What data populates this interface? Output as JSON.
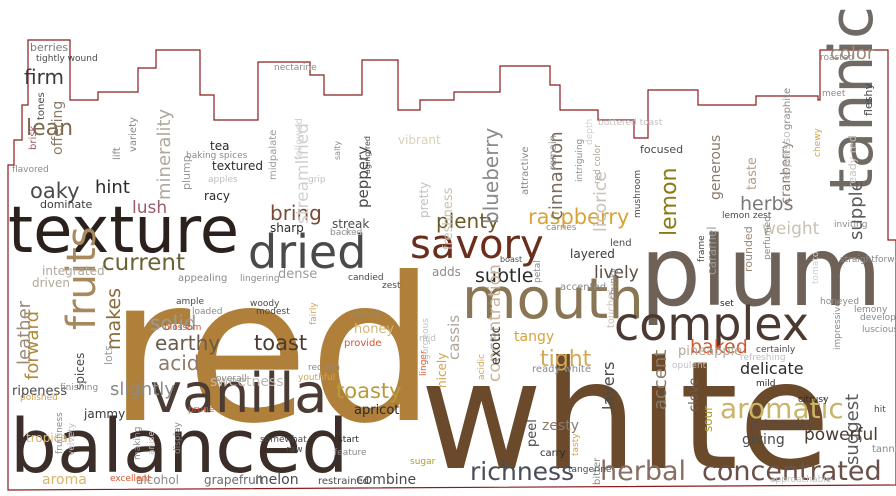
{
  "wordcloud": {
    "outline_color": "#8b1c1c",
    "background": "#ffffff",
    "words": [
      {
        "text": "white",
        "color": "#6b4a2b"
      },
      {
        "text": "red",
        "color": "#b0803a"
      },
      {
        "text": "plum",
        "color": "#6e6258"
      },
      {
        "text": "balanced",
        "color": "#3b2d28"
      },
      {
        "text": "texture",
        "color": "#2b211c"
      },
      {
        "text": "vanilla",
        "color": "#4a3c34"
      },
      {
        "text": "mouth",
        "color": "#8a7654"
      },
      {
        "text": "complex",
        "color": "#4a3a32"
      },
      {
        "text": "dried",
        "color": "#4a4a4a"
      },
      {
        "text": "savory",
        "color": "#6b2e1c"
      },
      {
        "text": "tannic",
        "color": "#6f6a63"
      },
      {
        "text": "fruits",
        "color": "#a8895e"
      },
      {
        "text": "herbal",
        "color": "#8a6e62"
      },
      {
        "text": "concentrated",
        "color": "#6a5048"
      },
      {
        "text": "richness",
        "color": "#4a4e58"
      },
      {
        "text": "current",
        "color": "#6a6232"
      },
      {
        "text": "raspberry",
        "color": "#d9a338"
      },
      {
        "text": "plenty",
        "color": "#6a5a2a"
      },
      {
        "text": "subtle",
        "color": "#2a2a2a"
      },
      {
        "text": "tight",
        "color": "#d4a955"
      },
      {
        "text": "toasty",
        "color": "#b99a3a"
      },
      {
        "text": "baked",
        "color": "#d9552e"
      },
      {
        "text": "delicate",
        "color": "#2a2a2a"
      },
      {
        "text": "aromatic",
        "color": "#c9b46a"
      },
      {
        "text": "acid",
        "color": "#8e7a68"
      },
      {
        "text": "lively",
        "color": "#5a4c40"
      },
      {
        "text": "herbs",
        "color": "#7a7a7a"
      },
      {
        "text": "weight",
        "color": "#c9c0b2"
      },
      {
        "text": "lemon",
        "color": "#8a7a18"
      },
      {
        "text": "earthy",
        "color": "#6a5a4a"
      },
      {
        "text": "toast",
        "color": "#4a3a30"
      },
      {
        "text": "solid",
        "color": "#9a9a9a"
      },
      {
        "text": "bring",
        "color": "#7a4a34"
      },
      {
        "text": "oaky",
        "color": "#4a4a4a"
      },
      {
        "text": "hint",
        "color": "#2a2a2a"
      },
      {
        "text": "lean",
        "color": "#7a6a4a"
      },
      {
        "text": "firm",
        "color": "#3a3a3a"
      },
      {
        "text": "lush",
        "color": "#9a5a6a"
      },
      {
        "text": "makes",
        "color": "#8a6a3a"
      },
      {
        "text": "forward",
        "color": "#b08a3a"
      },
      {
        "text": "leather",
        "color": "#9a8a7a"
      },
      {
        "text": "slightly",
        "color": "#8a8a8a"
      },
      {
        "text": "tangy",
        "color": "#d9a338"
      },
      {
        "text": "concentration",
        "color": "#c9b49a"
      },
      {
        "text": "cassis",
        "color": "#b0a49a"
      },
      {
        "text": "accent",
        "color": "#8a7a6a"
      },
      {
        "text": "layers",
        "color": "#4a4a4a"
      },
      {
        "text": "suggest",
        "color": "#5a5a5a"
      },
      {
        "text": "powerful",
        "color": "#4a3a30"
      },
      {
        "text": "intensity",
        "color": "#5a4a40"
      },
      {
        "text": "giving",
        "color": "#4a4a4a"
      },
      {
        "text": "supple",
        "color": "#5a5a5a"
      },
      {
        "text": "color",
        "color": "#9a8a7a"
      },
      {
        "text": "generous",
        "color": "#8a7a6a"
      },
      {
        "text": "taste",
        "color": "#b0a08a"
      },
      {
        "text": "cranberry",
        "color": "#8a7a6a"
      },
      {
        "text": "blueberry",
        "color": "#8a8a8a"
      },
      {
        "text": "cinnamon",
        "color": "#7a6a5a"
      },
      {
        "text": "licorice",
        "color": "#c9c0b8"
      },
      {
        "text": "streamlined",
        "color": "#d0d0d0"
      },
      {
        "text": "peppery",
        "color": "#4a4a4a"
      },
      {
        "text": "minerality",
        "color": "#b0a89a"
      },
      {
        "text": "offering",
        "color": "#8a7a6a"
      },
      {
        "text": "freshness",
        "color": "#c9bfb2"
      },
      {
        "text": "pretty",
        "color": "#c0c0c0"
      },
      {
        "text": "vibrant",
        "color": "#d9d0b8"
      },
      {
        "text": "dense",
        "color": "#9a9a9a"
      },
      {
        "text": "honey",
        "color": "#d4b47a"
      },
      {
        "text": "exotic",
        "color": "#3a3a3a"
      },
      {
        "text": "peel",
        "color": "#4a4a4a"
      },
      {
        "text": "zesty",
        "color": "#8a7a6a"
      },
      {
        "text": "clove",
        "color": "#6a5a4a"
      },
      {
        "text": "sour",
        "color": "#b09a30"
      },
      {
        "text": "rounded",
        "color": "#9a8a7a"
      },
      {
        "text": "caramel",
        "color": "#9a9a9a"
      },
      {
        "text": "pineapple",
        "color": "#b0a898"
      },
      {
        "text": "sweetness",
        "color": "#c0b8b0"
      },
      {
        "text": "apricot",
        "color": "#2a2a2a"
      },
      {
        "text": "combine",
        "color": "#4a4a4a"
      },
      {
        "text": "melon",
        "color": "#4a4a4a"
      },
      {
        "text": "grapefruit",
        "color": "#6a6a6a"
      },
      {
        "text": "alcohol",
        "color": "#8a8a8a"
      },
      {
        "text": "aroma",
        "color": "#d9b46a"
      },
      {
        "text": "tropical",
        "color": "#d9b46a"
      },
      {
        "text": "ripeness",
        "color": "#4a4a4a"
      },
      {
        "text": "jammy",
        "color": "#3a3a3a"
      },
      {
        "text": "spices",
        "color": "#4a4a4a"
      },
      {
        "text": "lots",
        "color": "#9a9a9a"
      },
      {
        "text": "driven",
        "color": "#b0a89a"
      },
      {
        "text": "integrated",
        "color": "#b0a89a"
      },
      {
        "text": "dominate",
        "color": "#3a3a3a"
      },
      {
        "text": "tea",
        "color": "#2a2a2a"
      },
      {
        "text": "textured",
        "color": "#2a2a2a"
      },
      {
        "text": "racy",
        "color": "#2a2a2a"
      },
      {
        "text": "sharp",
        "color": "#2a2a2a"
      },
      {
        "text": "streak",
        "color": "#4a4a4a"
      },
      {
        "text": "adds",
        "color": "#8a8a8a"
      },
      {
        "text": "nicely",
        "color": "#d4a34a"
      },
      {
        "text": "layered",
        "color": "#3a3a3a"
      },
      {
        "text": "focused",
        "color": "#4a4a4a"
      },
      {
        "text": "berries",
        "color": "#7a7a7a"
      },
      {
        "text": "tones",
        "color": "#4a4a4a"
      },
      {
        "text": "brisk",
        "color": "#9a5a6a"
      },
      {
        "text": "variety",
        "color": "#8a8a8a"
      },
      {
        "text": "lift",
        "color": "#8a8a8a"
      },
      {
        "text": "plump",
        "color": "#9a9a9a"
      },
      {
        "text": "midpalate",
        "color": "#9a9a9a"
      },
      {
        "text": "followed",
        "color": "#d0d0d0"
      },
      {
        "text": "nectarine",
        "color": "#8a8a8a"
      },
      {
        "text": "attractive",
        "color": "#8a8a8a"
      },
      {
        "text": "remain",
        "color": "#8a8a8a"
      },
      {
        "text": "buttered toast",
        "color": "#c0c0c0"
      },
      {
        "text": "espresso",
        "color": "#c0c0c0"
      },
      {
        "text": "fleshy",
        "color": "#4a4a4a"
      },
      {
        "text": "roasted",
        "color": "#8a8a8a"
      },
      {
        "text": "ready red",
        "color": "#c9c0b8"
      },
      {
        "text": "accented",
        "color": "#8a8a8a"
      },
      {
        "text": "touches",
        "color": "#c9c0b8"
      },
      {
        "text": "chunky",
        "color": "#8a8a8a"
      },
      {
        "text": "appealing",
        "color": "#8a8a8a"
      },
      {
        "text": "lingering",
        "color": "#8a8a8a"
      },
      {
        "text": "candied",
        "color": "#4a4a4a"
      },
      {
        "text": "robust",
        "color": "#8a8a8a"
      },
      {
        "text": "provide",
        "color": "#d9552e"
      },
      {
        "text": "linger",
        "color": "#d9552e"
      },
      {
        "text": "acidic",
        "color": "#d4a34a"
      },
      {
        "text": "ready white",
        "color": "#8a8a8a"
      },
      {
        "text": "opulent",
        "color": "#c0c0c0"
      },
      {
        "text": "bitter",
        "color": "#8a8a8a"
      },
      {
        "text": "carry",
        "color": "#2a2a2a"
      },
      {
        "text": "tangerine",
        "color": "#4a4a4a"
      },
      {
        "text": "sugar",
        "color": "#b09a30"
      },
      {
        "text": "raw",
        "color": "#4a4a4a"
      },
      {
        "text": "somewhat",
        "color": "#4a4a4a"
      },
      {
        "text": "start",
        "color": "#2a2a2a"
      },
      {
        "text": "feature",
        "color": "#8a8a8a"
      },
      {
        "text": "restrained",
        "color": "#4a4a4a"
      },
      {
        "text": "excellent",
        "color": "#d9552e"
      },
      {
        "text": "prune",
        "color": "#d9552e"
      },
      {
        "text": "making",
        "color": "#8a8a8a"
      },
      {
        "text": "anise",
        "color": "#c0c0c0"
      },
      {
        "text": "fruitiness",
        "color": "#8a8a8a"
      },
      {
        "text": "velvety",
        "color": "#c0c0c0"
      },
      {
        "text": "finishing",
        "color": "#8a8a8a"
      },
      {
        "text": "polished",
        "color": "#d4a34a"
      },
      {
        "text": "display",
        "color": "#8a8a8a"
      },
      {
        "text": "overall",
        "color": "#8a8a8a"
      },
      {
        "text": "red fim",
        "color": "#8a8a8a"
      },
      {
        "text": "youthful",
        "color": "#d4a34a"
      },
      {
        "text": "fairly",
        "color": "#d4a34a"
      },
      {
        "text": "woody",
        "color": "#4a4a4a"
      },
      {
        "text": "modest",
        "color": "#4a4a4a"
      },
      {
        "text": "blossom",
        "color": "#d9552e"
      },
      {
        "text": "ample",
        "color": "#4a4a4a"
      },
      {
        "text": "loaded",
        "color": "#8a8a8a"
      },
      {
        "text": "backed",
        "color": "#8a8a8a"
      },
      {
        "text": "carries",
        "color": "#8a8a8a"
      },
      {
        "text": "lend",
        "color": "#4a4a4a"
      },
      {
        "text": "petal",
        "color": "#8a8a8a"
      },
      {
        "text": "boast",
        "color": "#4a4a4a"
      },
      {
        "text": "depth",
        "color": "#d0d0d0"
      },
      {
        "text": "intriguing",
        "color": "#8a8a8a"
      },
      {
        "text": "red color",
        "color": "#b0a898"
      },
      {
        "text": "mushroom",
        "color": "#4a4a4a"
      },
      {
        "text": "lemon zest",
        "color": "#4a4a4a"
      },
      {
        "text": "perfumed",
        "color": "#8a8a8a"
      },
      {
        "text": "inviting",
        "color": "#8a8a8a"
      },
      {
        "text": "tomato",
        "color": "#d0d0d0"
      },
      {
        "text": "honeyed",
        "color": "#8a8a8a"
      },
      {
        "text": "lemony",
        "color": "#8a8a8a"
      },
      {
        "text": "develop red",
        "color": "#8a8a8a"
      },
      {
        "text": "luscious",
        "color": "#8a8a8a"
      },
      {
        "text": "set",
        "color": "#2a2a2a"
      },
      {
        "text": "mild",
        "color": "#2a2a2a"
      },
      {
        "text": "citrusy",
        "color": "#2a2a2a"
      },
      {
        "text": "approachable",
        "color": "#c0c0c0"
      },
      {
        "text": "tasty",
        "color": "#d4a34a"
      },
      {
        "text": "frame",
        "color": "#4a4a4a"
      },
      {
        "text": "chewy",
        "color": "#d4a34a"
      },
      {
        "text": "meet",
        "color": "#8a8a8a"
      },
      {
        "text": "tightly wound",
        "color": "#4a4a4a"
      },
      {
        "text": "flavored",
        "color": "#8a8a8a"
      },
      {
        "text": "baking spices",
        "color": "#8a8a8a"
      },
      {
        "text": "apples",
        "color": "#c0c0c0"
      },
      {
        "text": "salty",
        "color": "#8a8a8a"
      },
      {
        "text": "aging red",
        "color": "#4a4a4a"
      },
      {
        "text": "tannin",
        "color": "#8a8a8a"
      },
      {
        "text": "graphite",
        "color": "#8a8a8a"
      },
      {
        "text": "straightforward",
        "color": "#8a8a8a"
      },
      {
        "text": "impressive",
        "color": "#8a8a8a"
      },
      {
        "text": "hit",
        "color": "#4a4a4a"
      },
      {
        "text": "certainly",
        "color": "#4a4a4a"
      },
      {
        "text": "gorgeous",
        "color": "#c0c0c0"
      },
      {
        "text": "refreshing",
        "color": "#c0c0c0"
      },
      {
        "text": "grip",
        "color": "#c0c0c0"
      },
      {
        "text": "mid",
        "color": "#c0c0c0"
      },
      {
        "text": "zest",
        "color": "#4a4a4a"
      },
      {
        "text": "mid",
        "color": "#c0c0c0"
      }
    ]
  }
}
